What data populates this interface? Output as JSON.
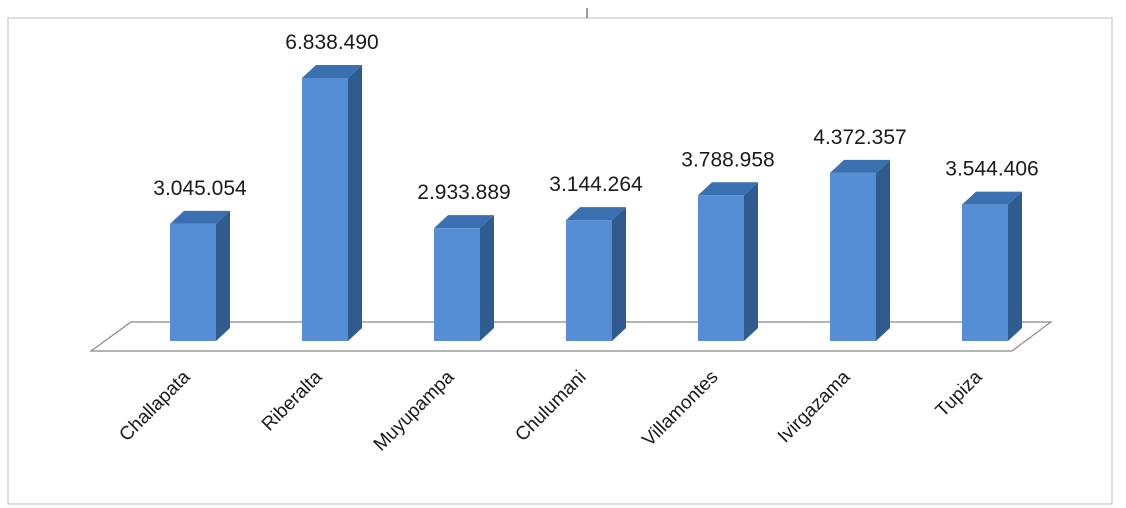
{
  "chart_data": {
    "type": "bar",
    "title": "",
    "xlabel": "",
    "ylabel": "",
    "categories": [
      "Challapata",
      "Riberalta",
      "Muyupampa",
      "Chulumani",
      "Villamontes",
      "Ivirgazama",
      "Tupiza"
    ],
    "values": [
      3045054,
      6838490,
      2933889,
      3144264,
      3788958,
      4372357,
      3544406
    ],
    "value_labels": [
      "3.045.054",
      "6.838.490",
      "2.933.889",
      "3.144.264",
      "3.788.958",
      "4.372.357",
      "3.544.406"
    ],
    "ylim": [
      0,
      6838490
    ],
    "grid": false,
    "legend": "none",
    "style": "3d-column",
    "colors": {
      "front": "#558ed5",
      "side": "#2f5b8f",
      "top": "#3a6fb0",
      "floor": "#888888"
    }
  }
}
